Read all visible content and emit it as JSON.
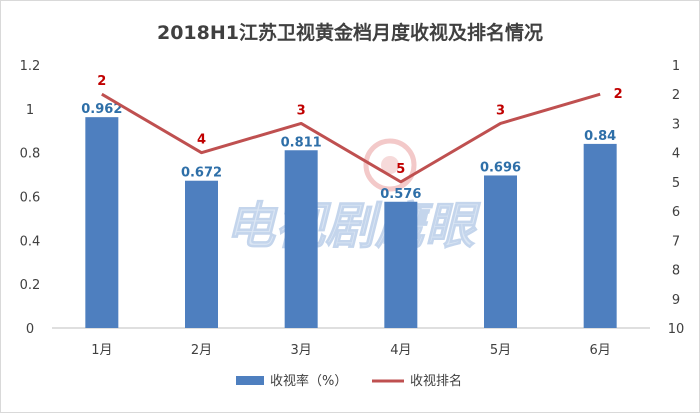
{
  "chart_data": {
    "type": "bar",
    "title": "2018H1江苏卫视黄金档月度收视及排名情况",
    "categories": [
      "1月",
      "2月",
      "3月",
      "4月",
      "5月",
      "6月"
    ],
    "series": [
      {
        "name": "收视率（%）",
        "kind": "bar",
        "axis": "left",
        "values": [
          0.962,
          0.672,
          0.811,
          0.576,
          0.696,
          0.84
        ],
        "labels": [
          "0.962",
          "0.672",
          "0.811",
          "0.576",
          "0.696",
          "0.84"
        ]
      },
      {
        "name": "收视排名",
        "kind": "line",
        "axis": "right",
        "values": [
          2,
          4,
          3,
          5,
          3,
          2
        ],
        "labels": [
          "2",
          "4",
          "3",
          "5",
          "3",
          "2"
        ]
      }
    ],
    "y_left": {
      "range": [
        0,
        1.2
      ],
      "ticks": [
        "0",
        "0.2",
        "0.4",
        "0.6",
        "0.8",
        "1",
        "1.2"
      ]
    },
    "y_right": {
      "range": [
        1,
        10
      ],
      "inverted": true,
      "ticks": [
        "1",
        "2",
        "3",
        "4",
        "5",
        "6",
        "7",
        "8",
        "9",
        "10"
      ]
    },
    "grid": false,
    "legend_position": "bottom",
    "watermark": "电视剧鹰眼",
    "colors": {
      "bar": "#4e7fbf",
      "line": "#bf5050",
      "bar_label": "#2e6fa8",
      "rank_label": "#c00000",
      "axis": "#bfbfbf",
      "text": "#404040"
    }
  }
}
